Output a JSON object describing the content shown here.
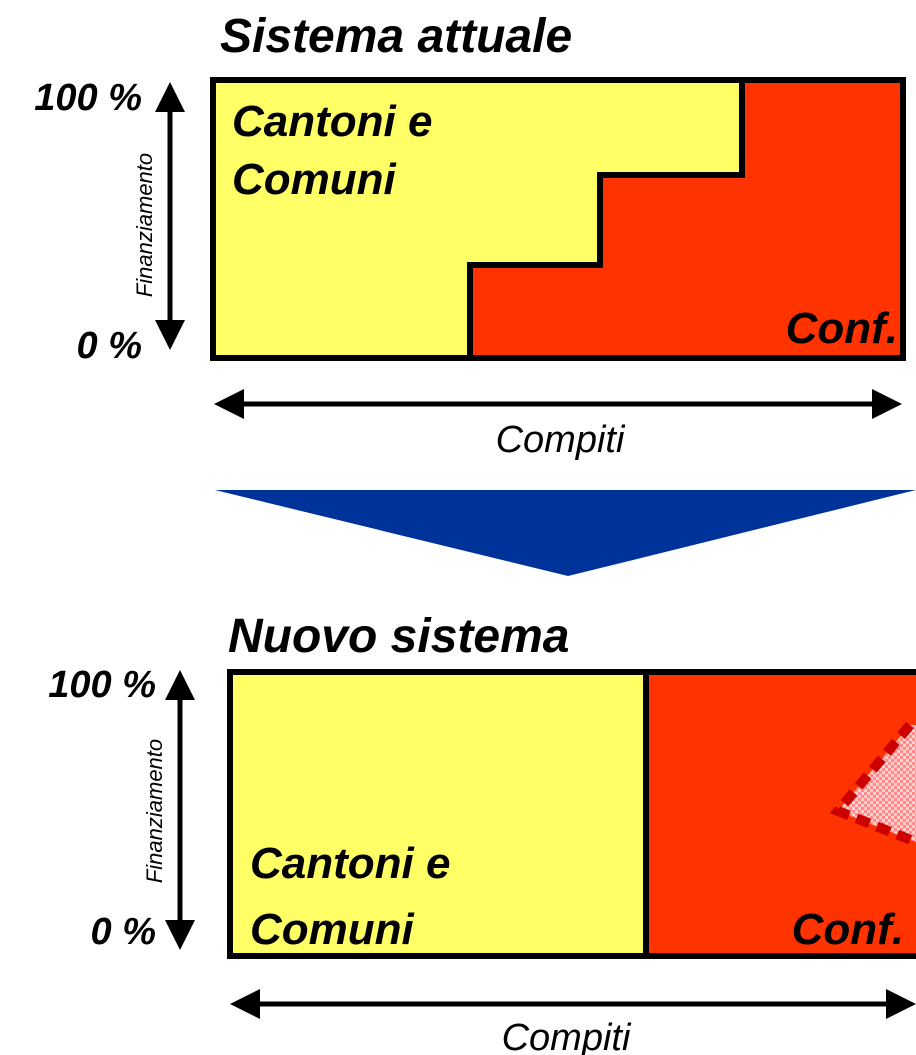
{
  "top_panel": {
    "title": "Sistema attuale",
    "y_top_label": "100 %",
    "y_bottom_label": "0 %",
    "y_axis_label": "Finanziamento",
    "x_axis_label": "Compiti",
    "left_region_line1": "Cantoni e",
    "left_region_line2": "Comuni",
    "right_region_label": "Conf."
  },
  "bottom_panel": {
    "title": "Nuovo sistema",
    "y_top_label": "100 %",
    "y_bottom_label": "0 %",
    "y_axis_label": "Finanziamento",
    "x_axis_label": "Compiti",
    "left_region_line1": "Cantoni e",
    "left_region_line2": "Comuni",
    "right_region_label": "Conf."
  },
  "colors": {
    "cantons_fill": "#ffff66",
    "confederation_fill": "#ff3300",
    "transition_arrow": "#003399",
    "dashed_outline": "#cc0000",
    "hatch_fill": "#ff9999"
  }
}
